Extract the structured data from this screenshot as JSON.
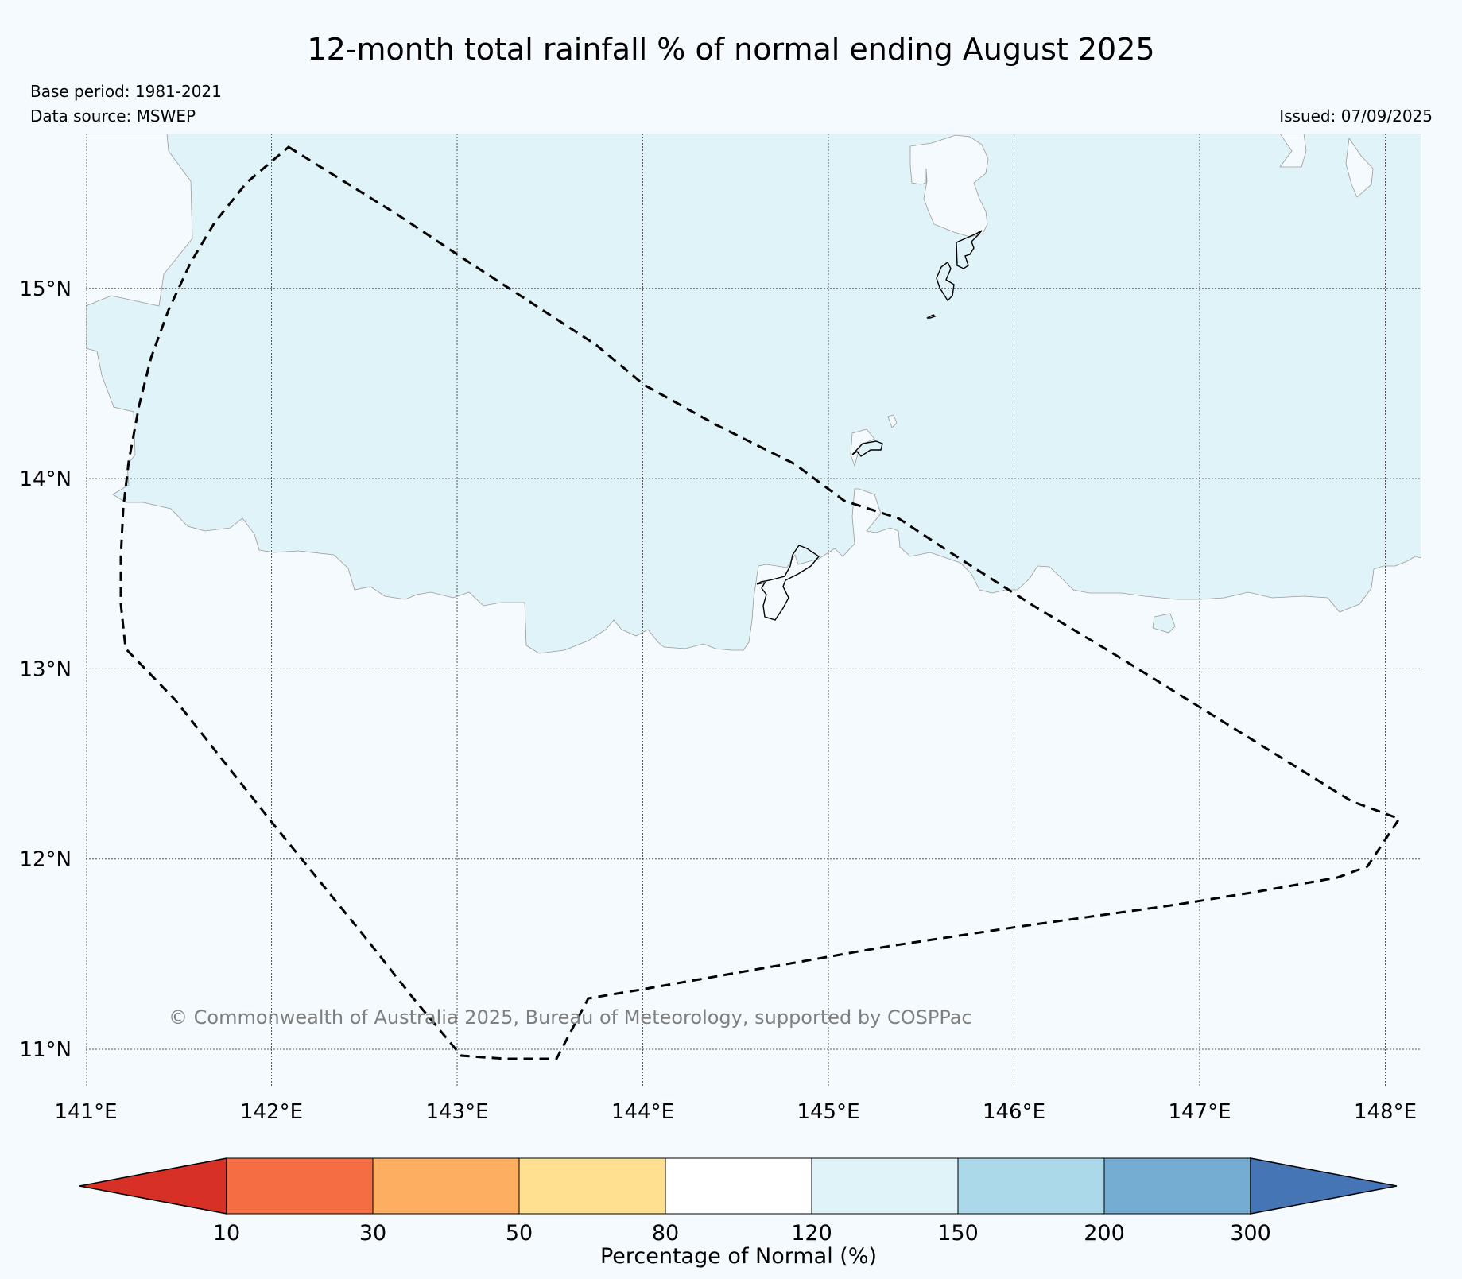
{
  "title": "12-month total rainfall % of normal ending August 2025",
  "base_period": "Base period: 1981-2021",
  "data_source": "Data source: MSWEP",
  "issued": "Issued: 07/09/2025",
  "copyright": "© Commonwealth of Australia 2025, Bureau of Meteorology, supported by COSPPac",
  "map": {
    "lon_range": [
      141,
      148.2
    ],
    "lat_range": [
      10.8,
      15.8
    ],
    "lon_ticks": [
      "141°E",
      "142°E",
      "143°E",
      "144°E",
      "145°E",
      "146°E",
      "147°E",
      "148°E"
    ],
    "lat_ticks": [
      "15°N",
      "14°N",
      "13°N",
      "12°N",
      "11°N"
    ],
    "colors": {
      "ocean": "#f4fafd",
      "wet_region": "#e0f3f8",
      "grid": "#555555"
    }
  },
  "colorbar": {
    "label": "Percentage of Normal (%)",
    "tick_labels": [
      "10",
      "30",
      "50",
      "80",
      "120",
      "150",
      "200",
      "300"
    ],
    "colors": [
      "#d73027",
      "#f46d43",
      "#fdae61",
      "#fee090",
      "#ffffff",
      "#e0f3f8",
      "#abd9e9",
      "#74add1",
      "#4575b4"
    ]
  }
}
